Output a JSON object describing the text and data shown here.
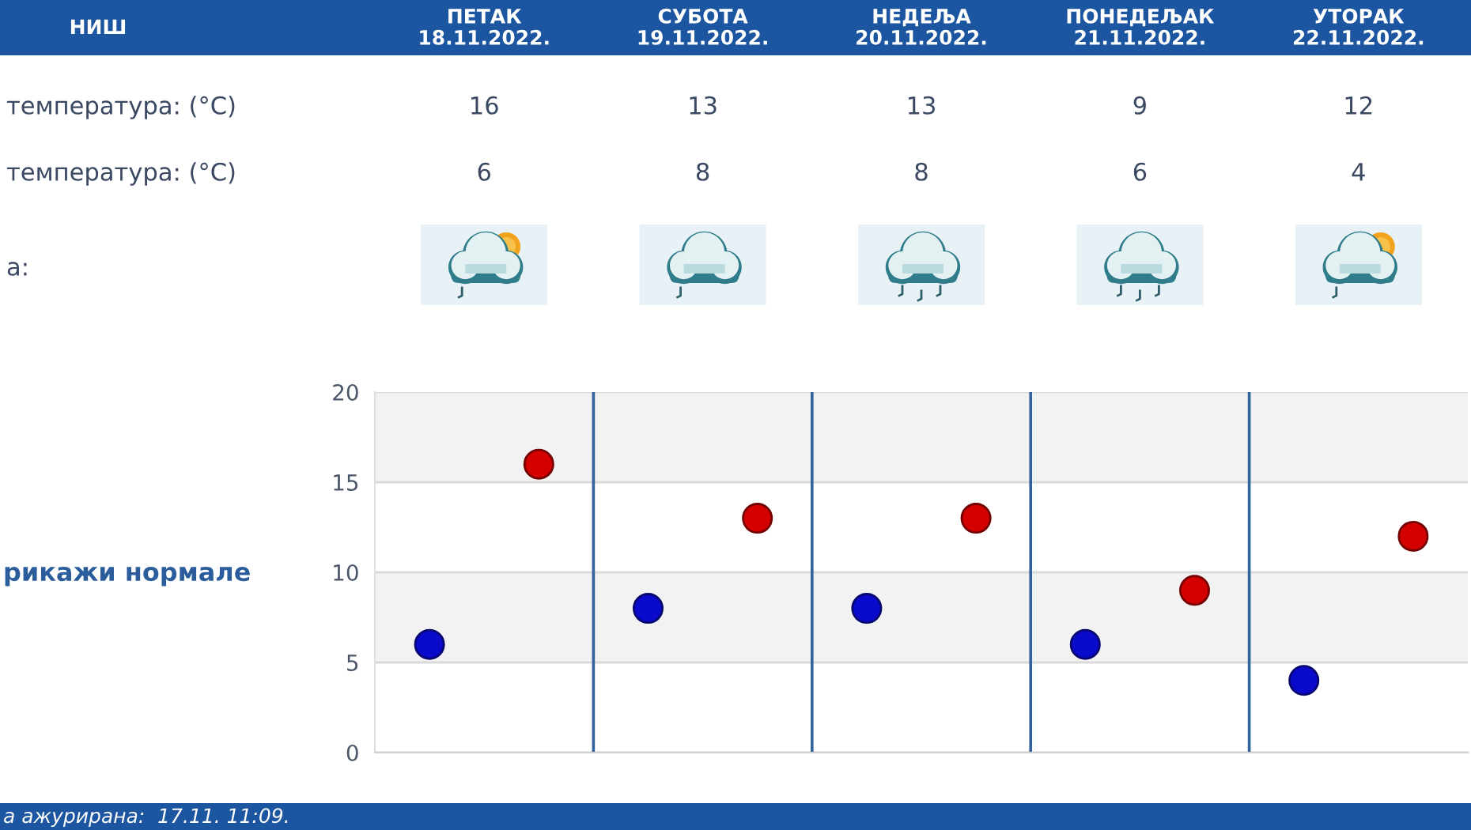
{
  "chart_data": {
    "type": "scatter",
    "title": "НИШ",
    "categories": [
      null,
      null,
      null,
      null,
      null
    ],
    "series": [
      {
        "color": "#0a0acc",
        "values": [
          6,
          8,
          8,
          6,
          4
        ]
      },
      {
        "color": "#d40000",
        "values": [
          16,
          13,
          13,
          9,
          12
        ]
      }
    ],
    "ylim": [
      0,
      20
    ],
    "yticks": [
      0,
      5,
      10,
      15,
      20
    ],
    "grid": true,
    "marker": "circle",
    "data_labels": true,
    "bands": [
      {
        "axis": "y",
        "from": 5,
        "to": 10,
        "color": "#f2f2f2"
      },
      {
        "axis": "y",
        "from": 15,
        "to": 20,
        "color": "#f2f2f2"
      }
    ],
    "annotations": [
      "ПЕТАК\n18.11.2022.",
      "СУБОТА\n19.11.2022.",
      "НЕДЕЉА\n20.11.2022.",
      "ПОНЕДЕЉАК\n21.11.2022.",
      "УТОРАК\n22.11.2022.",
      "температура: (°C)",
      "температура: (°C)",
      "а:",
      "рикажи нормале",
      "а ажурирана:  17.11. 11:09."
    ]
  }
}
